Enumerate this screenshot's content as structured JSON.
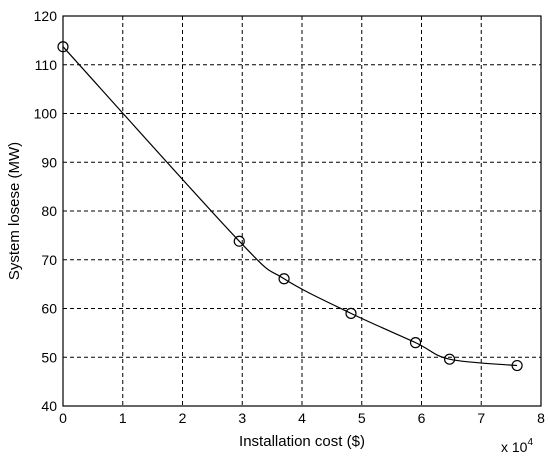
{
  "chart_data": {
    "type": "line",
    "title": "",
    "xlabel": "Installation cost ($)",
    "ylabel": "System losese (MW)",
    "x_multiplier": "x 10",
    "x_multiplier_exponent": "4",
    "xlim": [
      0,
      8
    ],
    "ylim": [
      40,
      120
    ],
    "x_ticks": [
      0,
      1,
      2,
      3,
      4,
      5,
      6,
      7,
      8
    ],
    "y_ticks": [
      40,
      50,
      60,
      70,
      80,
      90,
      100,
      110,
      120
    ],
    "grid": true,
    "legend": "none",
    "series": [
      {
        "marker": "circle",
        "line_style": "solid",
        "color": "#000000",
        "points": [
          {
            "x": 0.0,
            "y": 113.7
          },
          {
            "x": 2.95,
            "y": 73.8
          },
          {
            "x": 3.7,
            "y": 66.1
          },
          {
            "x": 4.82,
            "y": 59.0
          },
          {
            "x": 5.9,
            "y": 53.0
          },
          {
            "x": 6.47,
            "y": 49.6
          },
          {
            "x": 7.6,
            "y": 48.3
          }
        ]
      }
    ]
  }
}
